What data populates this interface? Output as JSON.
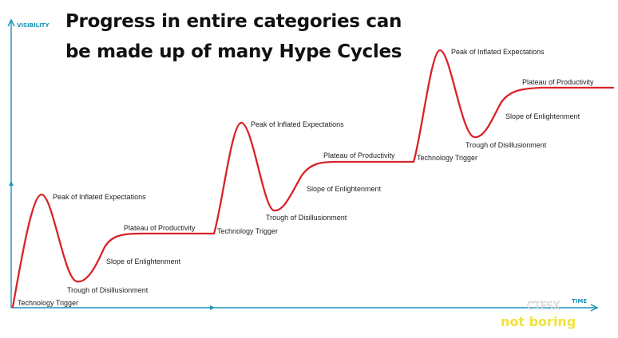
{
  "title": {
    "line1": "Progress in entire categories can",
    "line2": "be made up of many Hype Cycles"
  },
  "axes": {
    "y_label": "VISIBILITY",
    "x_label": "TIME",
    "color": "#1a94b8"
  },
  "curve_color": "#d8232a",
  "cycles": [
    {
      "technology_trigger": "Technology Trigger",
      "peak": "Peak of Inflated Expectations",
      "trough": "Trough of Disillusionment",
      "slope": "Slope of Enlightenment",
      "plateau": "Plateau of Productivity"
    },
    {
      "technology_trigger": "Technology Trigger",
      "peak": "Peak of Inflated Expectations",
      "trough": "Trough of Disillusionment",
      "slope": "Slope of Enlightenment",
      "plateau": "Plateau of Productivity"
    },
    {
      "technology_trigger": "Technology Trigger",
      "peak": "Peak of Inflated Expectations",
      "trough": "Trough of Disillusionment",
      "slope": "Slope of Enlightenment",
      "plateau": "Plateau of Productivity"
    }
  ],
  "watermark": {
    "brand": "not boring",
    "overlay": "CTFSX",
    "color": "#f2e23a"
  }
}
